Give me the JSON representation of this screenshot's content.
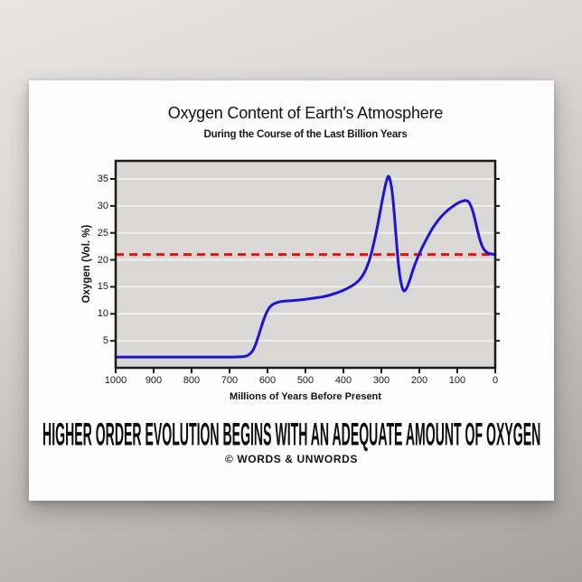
{
  "poster": {
    "headline": "HIGHER ORDER EVOLUTION BEGINS WITH AN ADEQUATE AMOUNT OF OXYGEN",
    "credit": "© WORDS & UNWORDS"
  },
  "chart_data": {
    "type": "line",
    "title": "Oxygen Content of Earth's Atmosphere",
    "subtitle": "During the Course of the Last Billion Years",
    "xlabel": "Millions of Years Before Present",
    "ylabel": "Oxygen (Vol. %)",
    "x_ticks": [
      1000,
      900,
      800,
      700,
      600,
      500,
      400,
      300,
      200,
      100,
      0
    ],
    "y_ticks": [
      5,
      10,
      15,
      20,
      25,
      30,
      35
    ],
    "xlim": [
      1000,
      0
    ],
    "ylim": [
      0,
      38.35
    ],
    "x_axis_reversed": true,
    "grid": "horizontal",
    "plot_bg": "#d9d8d6",
    "grid_color": "#efefed",
    "border_color": "#1b1b1b",
    "reference_line": {
      "y": 21,
      "style": "dashed",
      "color": "#e0150d"
    },
    "series": [
      {
        "name": "oxygen-content",
        "color": "#1e14d2",
        "points": [
          [
            1000,
            2
          ],
          [
            950,
            2
          ],
          [
            900,
            2
          ],
          [
            850,
            2
          ],
          [
            800,
            2
          ],
          [
            750,
            2
          ],
          [
            710,
            2
          ],
          [
            680,
            2
          ],
          [
            660,
            2.1
          ],
          [
            648,
            2.4
          ],
          [
            636,
            3.4
          ],
          [
            624,
            5.8
          ],
          [
            612,
            8.6
          ],
          [
            602,
            10.4
          ],
          [
            592,
            11.5
          ],
          [
            580,
            12.0
          ],
          [
            565,
            12.3
          ],
          [
            548,
            12.4
          ],
          [
            530,
            12.5
          ],
          [
            510,
            12.6
          ],
          [
            490,
            12.8
          ],
          [
            470,
            13.0
          ],
          [
            450,
            13.2
          ],
          [
            430,
            13.6
          ],
          [
            412,
            14.0
          ],
          [
            396,
            14.5
          ],
          [
            382,
            15.0
          ],
          [
            370,
            15.5
          ],
          [
            359,
            16.2
          ],
          [
            350,
            17.0
          ],
          [
            342,
            18.0
          ],
          [
            334,
            19.4
          ],
          [
            327,
            21.0
          ],
          [
            319,
            23.3
          ],
          [
            311,
            26.0
          ],
          [
            303,
            29.0
          ],
          [
            295,
            32.0
          ],
          [
            289,
            34.0
          ],
          [
            284,
            35.3
          ],
          [
            281,
            35.6
          ],
          [
            277,
            34.9
          ],
          [
            272,
            33.0
          ],
          [
            267,
            29.5
          ],
          [
            262,
            25.0
          ],
          [
            257,
            20.5
          ],
          [
            252,
            17.2
          ],
          [
            247,
            15.3
          ],
          [
            243,
            14.4
          ],
          [
            240,
            14.2
          ],
          [
            236,
            14.4
          ],
          [
            231,
            15.1
          ],
          [
            225,
            16.3
          ],
          [
            218,
            17.9
          ],
          [
            211,
            19.3
          ],
          [
            204,
            20.5
          ],
          [
            197,
            21.6
          ],
          [
            189,
            22.8
          ],
          [
            180,
            24.0
          ],
          [
            170,
            25.3
          ],
          [
            160,
            26.4
          ],
          [
            150,
            27.4
          ],
          [
            140,
            28.2
          ],
          [
            130,
            28.9
          ],
          [
            120,
            29.5
          ],
          [
            110,
            30.0
          ],
          [
            100,
            30.5
          ],
          [
            90,
            30.8
          ],
          [
            82,
            31.0
          ],
          [
            74,
            31.0
          ],
          [
            68,
            30.6
          ],
          [
            61,
            29.5
          ],
          [
            54,
            27.7
          ],
          [
            48,
            25.8
          ],
          [
            42,
            24.1
          ],
          [
            36,
            22.8
          ],
          [
            30,
            21.9
          ],
          [
            23,
            21.4
          ],
          [
            15,
            21.15
          ],
          [
            7,
            21.05
          ],
          [
            0,
            21
          ]
        ]
      }
    ]
  }
}
